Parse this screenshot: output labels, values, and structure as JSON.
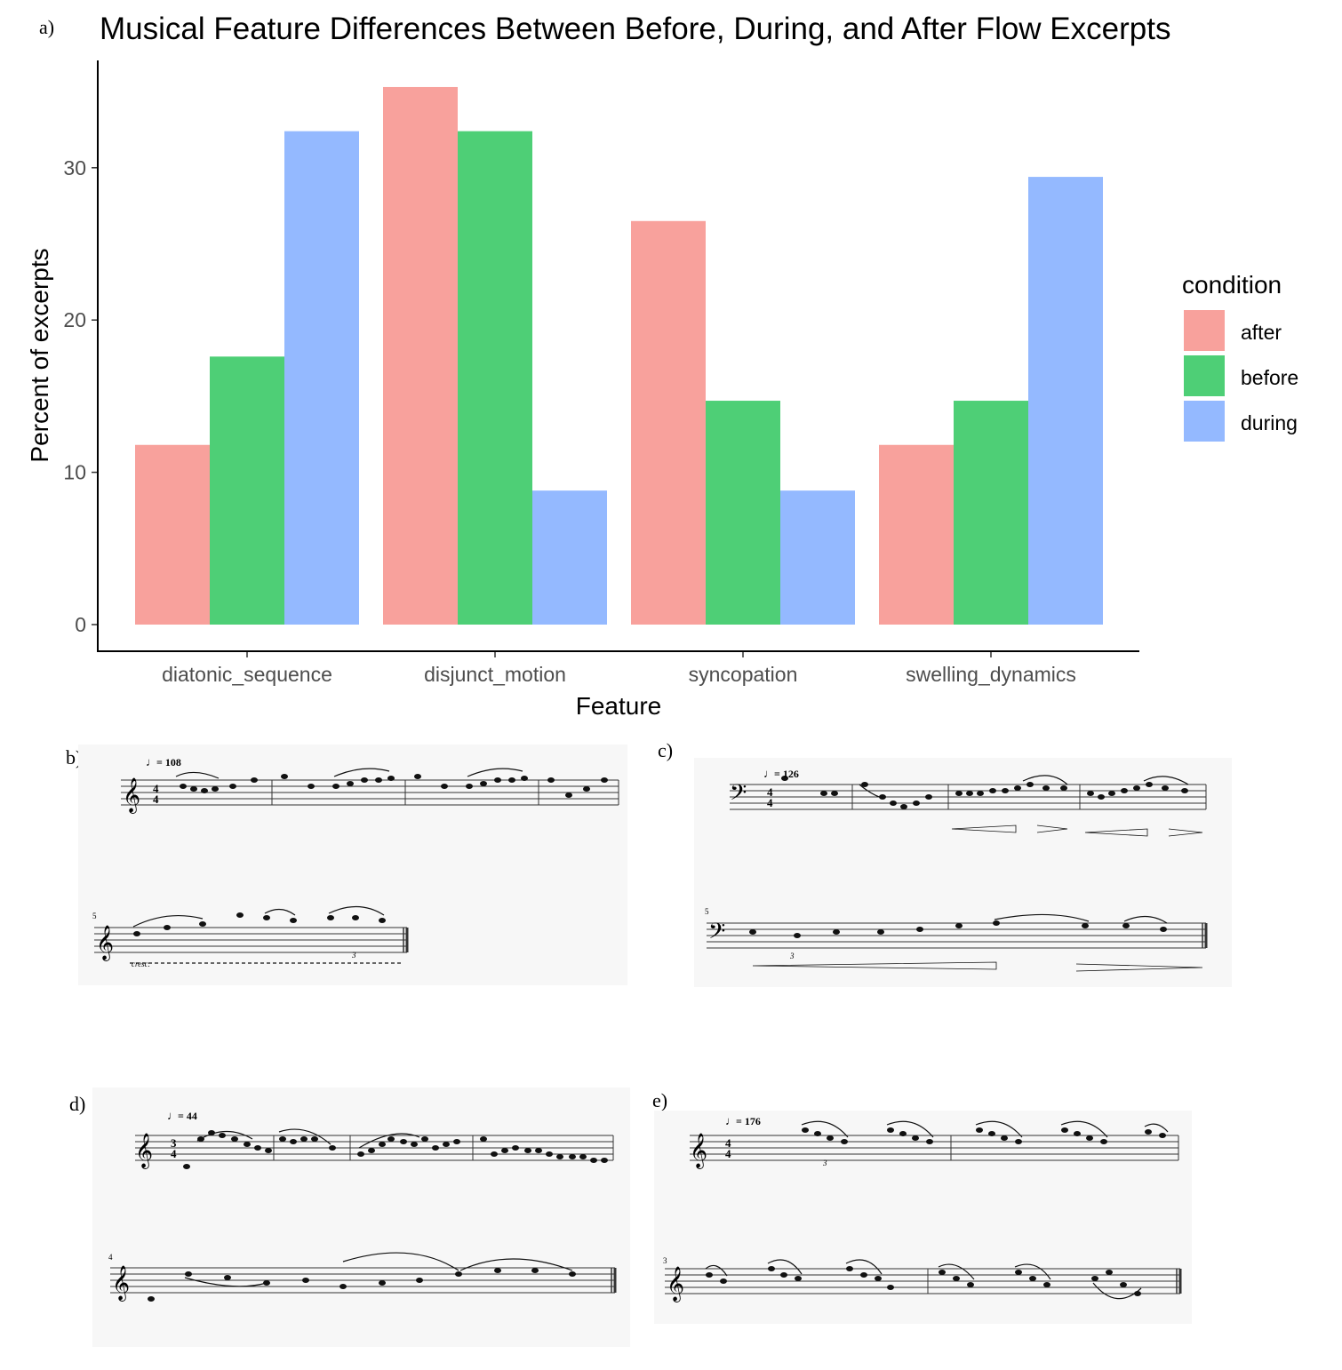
{
  "panels": {
    "a": "a)",
    "b": "b)",
    "c": "c)",
    "d": "d)",
    "e": "e)"
  },
  "chart_data": {
    "type": "bar",
    "title": "Musical Feature Differences Between Before, During, and After Flow Excerpts",
    "xlabel": "Feature",
    "ylabel": "Percent of excerpts",
    "categories": [
      "diatonic_sequence",
      "disjunct_motion",
      "syncopation",
      "swelling_dynamics"
    ],
    "series": [
      {
        "name": "after",
        "color": "#F8A19C",
        "values": [
          11.8,
          35.3,
          26.5,
          11.8
        ]
      },
      {
        "name": "before",
        "color": "#4ECF76",
        "values": [
          17.6,
          32.4,
          14.7,
          14.7
        ]
      },
      {
        "name": "during",
        "color": "#94B9FF",
        "values": [
          32.4,
          8.8,
          8.8,
          29.4
        ]
      }
    ],
    "yticks": [
      0,
      10,
      20,
      30
    ],
    "ylim": [
      0,
      37
    ],
    "legend_title": "condition",
    "legend_position": "right",
    "grid": false
  },
  "scores": {
    "b": {
      "tempo": "= 108",
      "clef": "treble",
      "measure_number": "5",
      "dynamic": "cresc.",
      "tuplet": "3"
    },
    "c": {
      "tempo": "= 126",
      "clef": "bass",
      "measure_number": "5",
      "tuplet": "3"
    },
    "d": {
      "tempo": "= 44",
      "clef": "treble",
      "measure_number": "4"
    },
    "e": {
      "tempo": "= 176",
      "clef": "treble",
      "measure_number": "3",
      "tuplet": "3"
    }
  }
}
